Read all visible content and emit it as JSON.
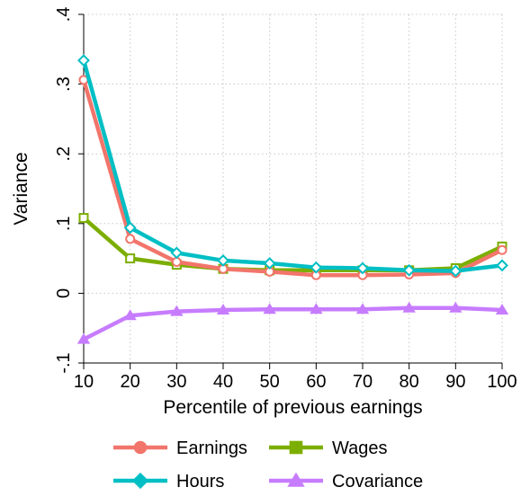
{
  "chart_data": {
    "type": "line",
    "title": "",
    "xlabel": "Percentile of previous earnings",
    "ylabel": "Variance",
    "x": [
      10,
      20,
      30,
      40,
      50,
      60,
      70,
      80,
      90,
      100
    ],
    "xticks": [
      "10",
      "20",
      "30",
      "40",
      "50",
      "60",
      "70",
      "80",
      "90",
      "100"
    ],
    "yticks": [
      {
        "value": -0.1,
        "label": "-.1"
      },
      {
        "value": 0,
        "label": "0"
      },
      {
        "value": 0.1,
        "label": ".1"
      },
      {
        "value": 0.2,
        "label": ".2"
      },
      {
        "value": 0.3,
        "label": ".3"
      },
      {
        "value": 0.4,
        "label": ".4"
      }
    ],
    "xlim": [
      10,
      100
    ],
    "ylim": [
      -0.1,
      0.4
    ],
    "grid": true,
    "legend_position": "bottom",
    "series": [
      {
        "name": "Earnings",
        "color": "#f2756b",
        "marker": "circle",
        "values": [
          0.306,
          0.078,
          0.045,
          0.035,
          0.031,
          0.026,
          0.026,
          0.027,
          0.029,
          0.062
        ]
      },
      {
        "name": "Wages",
        "color": "#7cae00",
        "marker": "square",
        "values": [
          0.108,
          0.05,
          0.041,
          0.035,
          0.033,
          0.033,
          0.033,
          0.033,
          0.036,
          0.067
        ]
      },
      {
        "name": "Hours",
        "color": "#00bfc4",
        "marker": "diamond",
        "values": [
          0.334,
          0.094,
          0.058,
          0.047,
          0.043,
          0.037,
          0.036,
          0.033,
          0.032,
          0.04
        ]
      },
      {
        "name": "Covariance",
        "color": "#c77cff",
        "marker": "triangle",
        "values": [
          -0.066,
          -0.032,
          -0.026,
          -0.024,
          -0.023,
          -0.023,
          -0.023,
          -0.021,
          -0.021,
          -0.024
        ]
      }
    ]
  }
}
